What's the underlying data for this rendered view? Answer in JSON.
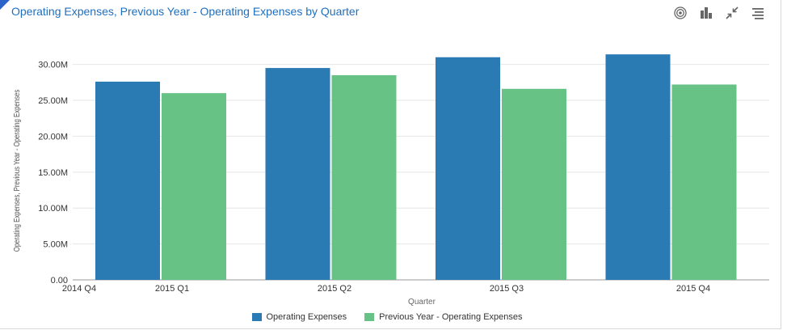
{
  "header": {
    "title": "Operating Expenses, Previous Year - Operating Expenses by Quarter"
  },
  "toolbar": {
    "icons": [
      "target-icon",
      "bar-chart-icon",
      "collapse-icon",
      "menu-icon"
    ]
  },
  "colors": {
    "series1": "#2a7ab4",
    "series2": "#67c285",
    "grid": "#e6e6e6",
    "axis": "#333333"
  },
  "chart_data": {
    "type": "bar",
    "categories": [
      "2015 Q1",
      "2015 Q2",
      "2015 Q3",
      "2015 Q4"
    ],
    "x_tick_labels": [
      "2014 Q4",
      "2015 Q1",
      "2015 Q2",
      "2015 Q3",
      "2015 Q4"
    ],
    "series": [
      {
        "name": "Operating Expenses",
        "values": [
          27.6,
          29.5,
          31.0,
          31.4
        ]
      },
      {
        "name": "Previous Year - Operating Expenses",
        "values": [
          26.0,
          28.5,
          26.6,
          27.2
        ]
      }
    ],
    "unit": "M",
    "yticks": [
      "0.00",
      "5.00M",
      "10.00M",
      "15.00M",
      "20.00M",
      "25.00M",
      "30.00M"
    ],
    "ylim": [
      0,
      33
    ],
    "xlabel": "Quarter",
    "ylabel": "Operating Expenses, Previous Year - Operating Expenses",
    "grid": true,
    "legend": "bottom-center"
  }
}
